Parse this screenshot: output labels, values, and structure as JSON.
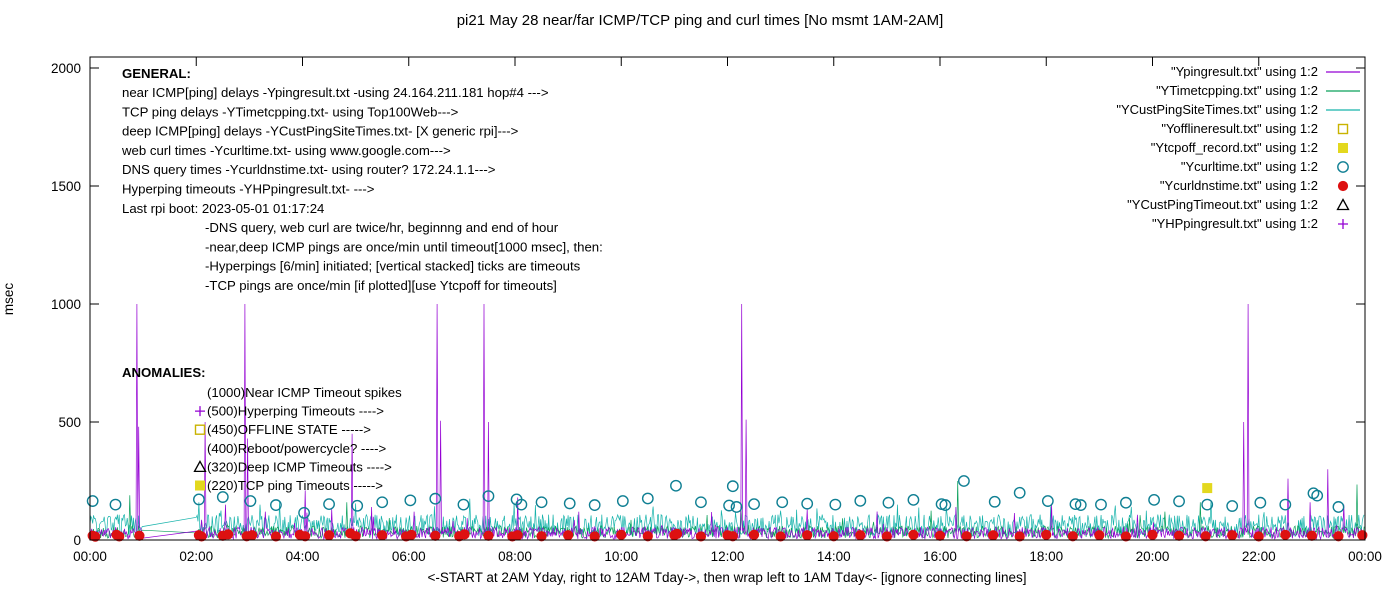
{
  "chart_data": {
    "type": "line",
    "title": "pi21 May 28  near/far ICMP/TCP ping and curl times [No msmt 1AM-2AM]",
    "xlabel": "<-START at 2AM Yday, right to 12AM Tday->, then wrap left to 1AM Tday<- [ignore connecting lines]",
    "ylabel": "msec",
    "ylim": [
      0,
      2000
    ],
    "yticks": [
      0,
      500,
      1000,
      1500,
      2000
    ],
    "x_hours": [
      0,
      24
    ],
    "xtick_labels": [
      "00:00",
      "02:00",
      "04:00",
      "06:00",
      "08:00",
      "10:00",
      "12:00",
      "14:00",
      "16:00",
      "18:00",
      "20:00",
      "22:00",
      "00:00"
    ],
    "gap_hours": [
      1,
      2
    ],
    "gap_note": "No msmt 1AM-2AM",
    "grid": false,
    "legend_position": "top-right",
    "series": [
      {
        "file": "Ypingresult",
        "label": "\"Ypingresult.txt\" using 1:2",
        "style": "line",
        "color": "#9400d3",
        "seed": 11,
        "baseline_msec": [
          4,
          55
        ],
        "burst_prob": 0.02,
        "burst_extra": 100,
        "timeout_msec": 1000,
        "spikes": [
          [
            0.88,
            1000
          ],
          [
            0.92,
            480
          ],
          [
            2.16,
            500
          ],
          [
            2.55,
            150
          ],
          [
            2.92,
            1000
          ],
          [
            2.97,
            430
          ],
          [
            3.3,
            120
          ],
          [
            4.05,
            210
          ],
          [
            4.55,
            130
          ],
          [
            4.93,
            450
          ],
          [
            5.3,
            140
          ],
          [
            6.53,
            1000
          ],
          [
            6.6,
            505
          ],
          [
            7.42,
            1000
          ],
          [
            7.5,
            500
          ],
          [
            8.05,
            180
          ],
          [
            9.2,
            120
          ],
          [
            12.27,
            1000
          ],
          [
            12.35,
            510
          ],
          [
            13.5,
            130
          ],
          [
            16.3,
            140
          ],
          [
            18.1,
            150
          ],
          [
            21.72,
            500
          ],
          [
            21.8,
            1000
          ],
          [
            22.55,
            260
          ],
          [
            22.97,
            160
          ],
          [
            23.3,
            300
          ],
          [
            23.6,
            150
          ]
        ]
      },
      {
        "file": "YTimetcpping",
        "label": "\"YTimetcpping.txt\" using 1:2",
        "style": "line",
        "color": "#0aa05a",
        "seed": 22,
        "baseline_msec": [
          8,
          60
        ],
        "burst_prob": 0.015,
        "burst_extra": 90,
        "spikes": [
          [
            0.75,
            190
          ],
          [
            4.83,
            160
          ],
          [
            16.33,
            250
          ],
          [
            20.9,
            160
          ],
          [
            23.85,
            235
          ]
        ]
      },
      {
        "file": "YCustPingSiteTimes",
        "label": "\"YCustPingSiteTimes.txt\" using 1:2",
        "style": "line",
        "color": "#17b3ab",
        "seed": 33,
        "baseline_msec": [
          15,
          108
        ],
        "burst_prob": 0.03,
        "burst_extra": 60,
        "spikes": [
          [
            2.05,
            160
          ],
          [
            3.2,
            150
          ],
          [
            5.0,
            155
          ],
          [
            7.15,
            175
          ],
          [
            10.6,
            142
          ],
          [
            15.2,
            150
          ],
          [
            19.3,
            146
          ],
          [
            21.1,
            160
          ]
        ]
      },
      {
        "file": "Yofflineresult",
        "label": "\"Yofflineresult.txt\" using 1:2",
        "style": "open-square",
        "color": "#c9b300",
        "points": []
      },
      {
        "file": "Ytcpoff_record",
        "label": "\"Ytcpoff_record.txt\" using 1:2",
        "style": "filled-square",
        "color": "#e3d81e",
        "points": [
          [
            21.03,
            220
          ]
        ]
      },
      {
        "file": "Ycurltime",
        "label": "\"Ycurltime.txt\" using 1:2",
        "style": "open-circle",
        "color": "#0f7f93",
        "points": [
          [
            0.05,
            165
          ],
          [
            0.48,
            150
          ],
          [
            2.05,
            172
          ],
          [
            2.5,
            182
          ],
          [
            3.02,
            165
          ],
          [
            3.5,
            148
          ],
          [
            4.03,
            115
          ],
          [
            4.5,
            152
          ],
          [
            5.03,
            145
          ],
          [
            5.5,
            160
          ],
          [
            6.03,
            168
          ],
          [
            6.5,
            175
          ],
          [
            7.03,
            150
          ],
          [
            7.5,
            186
          ],
          [
            8.03,
            172
          ],
          [
            8.12,
            150
          ],
          [
            8.5,
            160
          ],
          [
            9.03,
            155
          ],
          [
            9.5,
            148
          ],
          [
            10.03,
            165
          ],
          [
            10.5,
            176
          ],
          [
            11.03,
            230
          ],
          [
            11.5,
            160
          ],
          [
            12.03,
            146
          ],
          [
            12.1,
            228
          ],
          [
            12.17,
            140
          ],
          [
            12.5,
            152
          ],
          [
            13.03,
            160
          ],
          [
            13.5,
            154
          ],
          [
            14.03,
            150
          ],
          [
            14.5,
            166
          ],
          [
            15.03,
            158
          ],
          [
            15.5,
            170
          ],
          [
            16.03,
            152
          ],
          [
            16.1,
            148
          ],
          [
            16.45,
            250
          ],
          [
            17.03,
            162
          ],
          [
            17.5,
            200
          ],
          [
            18.03,
            165
          ],
          [
            18.55,
            152
          ],
          [
            18.65,
            148
          ],
          [
            19.03,
            150
          ],
          [
            19.5,
            158
          ],
          [
            20.03,
            170
          ],
          [
            20.5,
            164
          ],
          [
            21.03,
            150
          ],
          [
            21.5,
            144
          ],
          [
            22.03,
            158
          ],
          [
            22.5,
            150
          ],
          [
            23.03,
            198
          ],
          [
            23.1,
            188
          ],
          [
            23.5,
            140
          ]
        ]
      },
      {
        "file": "Ycurldnstime",
        "label": "\"Ycurldnstime.txt\" using 1:2",
        "style": "filled-circle",
        "color": "#dd1111",
        "points": [
          [
            0.05,
            18
          ],
          [
            0.1,
            14
          ],
          [
            0.5,
            22
          ],
          [
            0.55,
            15
          ],
          [
            0.93,
            18
          ],
          [
            2.05,
            20
          ],
          [
            2.1,
            15
          ],
          [
            2.5,
            18
          ],
          [
            2.6,
            24
          ],
          [
            2.95,
            16
          ],
          [
            3.05,
            20
          ],
          [
            3.5,
            15
          ],
          [
            3.95,
            22
          ],
          [
            4.05,
            16
          ],
          [
            4.5,
            20
          ],
          [
            4.9,
            28
          ],
          [
            5.0,
            16
          ],
          [
            5.5,
            20
          ],
          [
            5.95,
            15
          ],
          [
            6.05,
            22
          ],
          [
            6.5,
            18
          ],
          [
            6.95,
            16
          ],
          [
            7.05,
            24
          ],
          [
            7.5,
            18
          ],
          [
            7.95,
            15
          ],
          [
            8.05,
            20
          ],
          [
            8.5,
            16
          ],
          [
            9.0,
            20
          ],
          [
            9.5,
            15
          ],
          [
            10.0,
            22
          ],
          [
            10.5,
            16
          ],
          [
            11.0,
            20
          ],
          [
            11.05,
            26
          ],
          [
            11.5,
            15
          ],
          [
            12.0,
            20
          ],
          [
            12.1,
            16
          ],
          [
            12.5,
            22
          ],
          [
            13.0,
            15
          ],
          [
            13.5,
            20
          ],
          [
            14.0,
            16
          ],
          [
            14.5,
            20
          ],
          [
            15.0,
            15
          ],
          [
            15.5,
            22
          ],
          [
            16.0,
            18
          ],
          [
            16.5,
            16
          ],
          [
            17.0,
            20
          ],
          [
            17.5,
            15
          ],
          [
            18.0,
            22
          ],
          [
            18.5,
            16
          ],
          [
            19.0,
            20
          ],
          [
            19.5,
            15
          ],
          [
            20.0,
            22
          ],
          [
            20.5,
            18
          ],
          [
            21.0,
            16
          ],
          [
            21.5,
            20
          ],
          [
            22.0,
            15
          ],
          [
            22.5,
            22
          ],
          [
            23.0,
            18
          ],
          [
            23.5,
            16
          ],
          [
            23.95,
            20
          ]
        ]
      },
      {
        "file": "YCustPingTimeout",
        "label": "\"YCustPingTimeout.txt\" using 1:2",
        "style": "open-triangle",
        "color": "#000000",
        "points": []
      },
      {
        "file": "YHPpingresult",
        "label": "\"YHPpingresult.txt\" using 1:2",
        "style": "plus",
        "color": "#9400d3",
        "points": []
      }
    ],
    "annotations": {
      "general": {
        "heading": "GENERAL:",
        "lines": [
          "near ICMP[ping] delays -Ypingresult.txt -using 24.164.211.181 hop#4 --->",
          "TCP ping delays -YTimetcpping.txt- using Top100Web--->",
          "deep ICMP[ping] delays -YCustPingSiteTimes.txt- [X generic rpi]--->",
          "web curl times -Ycurltime.txt- using www.google.com--->",
          "DNS query times -Ycurldnstime.txt- using router? 172.24.1.1--->",
          "Hyperping timeouts -YHPpingresult.txt- --->",
          "Last rpi boot: 2023-05-01 01:17:24"
        ],
        "indented_lines": [
          "-DNS query, web curl are twice/hr, beginnng and end of hour",
          "-near,deep ICMP pings are once/min until timeout[1000 msec], then:",
          "-Hyperpings [6/min] initiated; [vertical stacked] ticks are timeouts",
          "-TCP pings are once/min [if plotted][use Ytcpoff for timeouts]"
        ]
      },
      "anomalies": {
        "heading": "ANOMALIES:",
        "items": [
          {
            "label": "(1000)Near ICMP Timeout spikes",
            "marker": null,
            "marker_color": null
          },
          {
            "label": "(500)Hyperping Timeouts ---->",
            "marker": "plus",
            "marker_color": "#9400d3"
          },
          {
            "label": "(450)OFFLINE STATE ----->",
            "marker": "open-square",
            "marker_color": "#c9b300"
          },
          {
            "label": "(400)Reboot/powercycle? ---->",
            "marker": null,
            "marker_color": null
          },
          {
            "label": "(320)Deep ICMP Timeouts ---->",
            "marker": "open-triangle",
            "marker_color": "#000000"
          },
          {
            "label": "(220)TCP ping Timeouts ----->",
            "marker": "filled-square",
            "marker_color": "#e3d81e"
          }
        ]
      }
    }
  }
}
